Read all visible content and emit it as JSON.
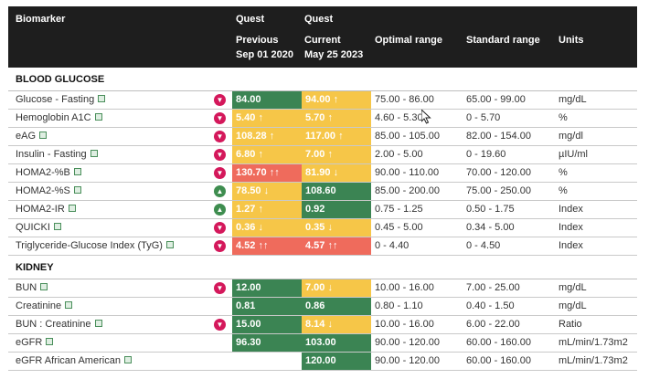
{
  "header": {
    "biomarker": "Biomarker",
    "prev_quest": "Quest",
    "prev_label": "Previous",
    "prev_date": "Sep 01 2020",
    "curr_quest": "Quest",
    "curr_label": "Current",
    "curr_date": "May 25 2023",
    "optimal": "Optimal range",
    "standard": "Standard range",
    "units": "Units"
  },
  "sections": [
    {
      "title": "BLOOD GLUCOSE",
      "rows": [
        {
          "name": "Glucose - Fasting",
          "thumb": "down",
          "prev": "84.00",
          "prev_color": "green",
          "curr": "94.00 ↑",
          "curr_color": "yellow",
          "optimal": "75.00 - 86.00",
          "standard": "65.00 - 99.00",
          "unit": "mg/dL"
        },
        {
          "name": "Hemoglobin A1C",
          "thumb": "down",
          "prev": "5.40 ↑",
          "prev_color": "yellow",
          "curr": "5.70 ↑",
          "curr_color": "yellow",
          "optimal": "4.60 - 5.30",
          "standard": "0 - 5.70",
          "unit": "%"
        },
        {
          "name": "eAG",
          "thumb": "down",
          "prev": "108.28 ↑",
          "prev_color": "yellow",
          "curr": "117.00 ↑",
          "curr_color": "yellow",
          "optimal": "85.00 - 105.00",
          "standard": "82.00 - 154.00",
          "unit": "mg/dl"
        },
        {
          "name": "Insulin - Fasting",
          "thumb": "down",
          "prev": "6.80 ↑",
          "prev_color": "yellow",
          "curr": "7.00 ↑",
          "curr_color": "yellow",
          "optimal": "2.00 - 5.00",
          "standard": "0 - 19.60",
          "unit": "µIU/ml"
        },
        {
          "name": "HOMA2-%B",
          "thumb": "down",
          "prev": "130.70 ↑↑",
          "prev_color": "red",
          "curr": "81.90 ↓",
          "curr_color": "yellow",
          "optimal": "90.00 - 110.00",
          "standard": "70.00 - 120.00",
          "unit": "%"
        },
        {
          "name": "HOMA2-%S",
          "thumb": "up",
          "prev": "78.50 ↓",
          "prev_color": "yellow",
          "curr": "108.60",
          "curr_color": "green",
          "optimal": "85.00 - 200.00",
          "standard": "75.00 - 250.00",
          "unit": "%"
        },
        {
          "name": "HOMA2-IR",
          "thumb": "up",
          "prev": "1.27 ↑",
          "prev_color": "yellow",
          "curr": "0.92",
          "curr_color": "green",
          "optimal": "0.75 - 1.25",
          "standard": "0.50 - 1.75",
          "unit": "Index"
        },
        {
          "name": "QUICKI",
          "thumb": "down",
          "prev": "0.36 ↓",
          "prev_color": "yellow",
          "curr": "0.35 ↓",
          "curr_color": "yellow",
          "optimal": "0.45 - 5.00",
          "standard": "0.34 - 5.00",
          "unit": "Index"
        },
        {
          "name": "Triglyceride-Glucose Index (TyG)",
          "thumb": "down",
          "prev": "4.52 ↑↑",
          "prev_color": "red",
          "curr": "4.57 ↑↑",
          "curr_color": "red",
          "optimal": "0 - 4.40",
          "standard": "0 - 4.50",
          "unit": "Index"
        }
      ]
    },
    {
      "title": "KIDNEY",
      "rows": [
        {
          "name": "BUN",
          "thumb": "down",
          "prev": "12.00",
          "prev_color": "green",
          "curr": "7.00 ↓",
          "curr_color": "yellow",
          "optimal": "10.00 - 16.00",
          "standard": "7.00 - 25.00",
          "unit": "mg/dL"
        },
        {
          "name": "Creatinine",
          "thumb": "",
          "prev": "0.81",
          "prev_color": "green",
          "curr": "0.86",
          "curr_color": "green",
          "optimal": "0.80 - 1.10",
          "standard": "0.40 - 1.50",
          "unit": "mg/dL"
        },
        {
          "name": "BUN : Creatinine",
          "thumb": "down",
          "prev": "15.00",
          "prev_color": "green",
          "curr": "8.14 ↓",
          "curr_color": "yellow",
          "optimal": "10.00 - 16.00",
          "standard": "6.00 - 22.00",
          "unit": "Ratio"
        },
        {
          "name": "eGFR",
          "thumb": "",
          "prev": "96.30",
          "prev_color": "green",
          "curr": "103.00",
          "curr_color": "green",
          "optimal": "90.00 - 120.00",
          "standard": "60.00 - 160.00",
          "unit": "mL/min/1.73m2"
        },
        {
          "name": "eGFR African American",
          "thumb": "",
          "prev": "",
          "prev_color": "none",
          "curr": "120.00",
          "curr_color": "green",
          "optimal": "90.00 - 120.00",
          "standard": "60.00 - 160.00",
          "unit": "mL/min/1.73m2"
        }
      ]
    }
  ],
  "icons": {
    "copy": "copy-icon",
    "thumb_down": "thumbs-down-icon",
    "thumb_up": "thumbs-up-icon",
    "cursor": "mouse-cursor-icon"
  },
  "colors": {
    "header_bg": "#1e1e1e",
    "green": "#3b8453",
    "yellow": "#f6c648",
    "red": "#ef6b5c",
    "thumb_down": "#d4185b",
    "thumb_up": "#3e8d4f"
  }
}
